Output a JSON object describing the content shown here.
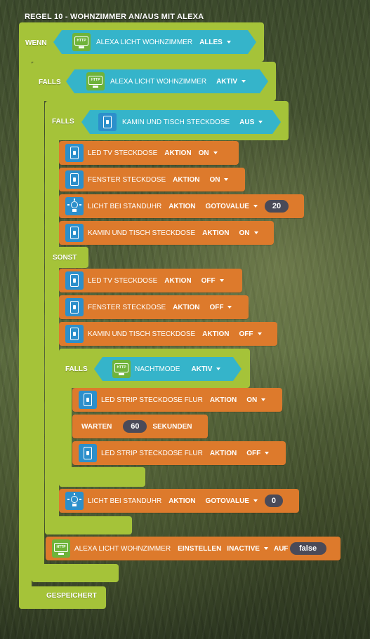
{
  "rule_title": "REGEL 10 - WOHNZIMMER AN/AUS MIT ALEXA",
  "wenn": {
    "label": "WENN",
    "device": "ALEXA LICHT WOHNZIMMER",
    "dropdown": "ALLES"
  },
  "falls1": {
    "label": "FALLS",
    "device": "ALEXA LICHT WOHNZIMMER",
    "dropdown": "AKTIV"
  },
  "falls2": {
    "label": "FALLS",
    "device": "KAMIN UND TISCH STECKDOSE",
    "dropdown": "AUS"
  },
  "then_actions": [
    {
      "device": "LED TV STECKDOSE",
      "label": "AKTION",
      "value": "ON"
    },
    {
      "device": "FENSTER STECKDOSE",
      "label": "AKTION",
      "value": "ON"
    },
    {
      "device": "LICHT BEI STANDUHR",
      "label": "AKTION",
      "value": "GOTOVALUE",
      "number": "20"
    },
    {
      "device": "KAMIN UND TISCH STECKDOSE",
      "label": "AKTION",
      "value": "ON"
    }
  ],
  "sonst": "SONST",
  "else_actions": [
    {
      "device": "LED TV STECKDOSE",
      "label": "AKTION",
      "value": "OFF"
    },
    {
      "device": "FENSTER STECKDOSE",
      "label": "AKTION",
      "value": "OFF"
    },
    {
      "device": "KAMIN UND TISCH STECKDOSE",
      "label": "AKTION",
      "value": "OFF"
    }
  ],
  "falls3": {
    "label": "FALLS",
    "device": "NACHTMODE",
    "dropdown": "AKTIV"
  },
  "night_actions": [
    {
      "device": "LED STRIP STECKDOSE FLUR",
      "label": "AKTION",
      "value": "ON"
    },
    {
      "device": "LED STRIP STECKDOSE FLUR",
      "label": "AKTION",
      "value": "OFF"
    }
  ],
  "warten": {
    "label": "WARTEN",
    "number": "60",
    "unit": "SEKUNDEN"
  },
  "standuhr_after": {
    "device": "LICHT BEI STANDUHR",
    "label": "AKTION",
    "value": "GOTOVALUE",
    "number": "0"
  },
  "set_action": {
    "device": "ALEXA LICHT WOHNZIMMER",
    "label": "EINSTELLEN",
    "value": "INACTIVE",
    "auf": "AUF",
    "bool": "false"
  },
  "saved": "GESPEICHERT"
}
